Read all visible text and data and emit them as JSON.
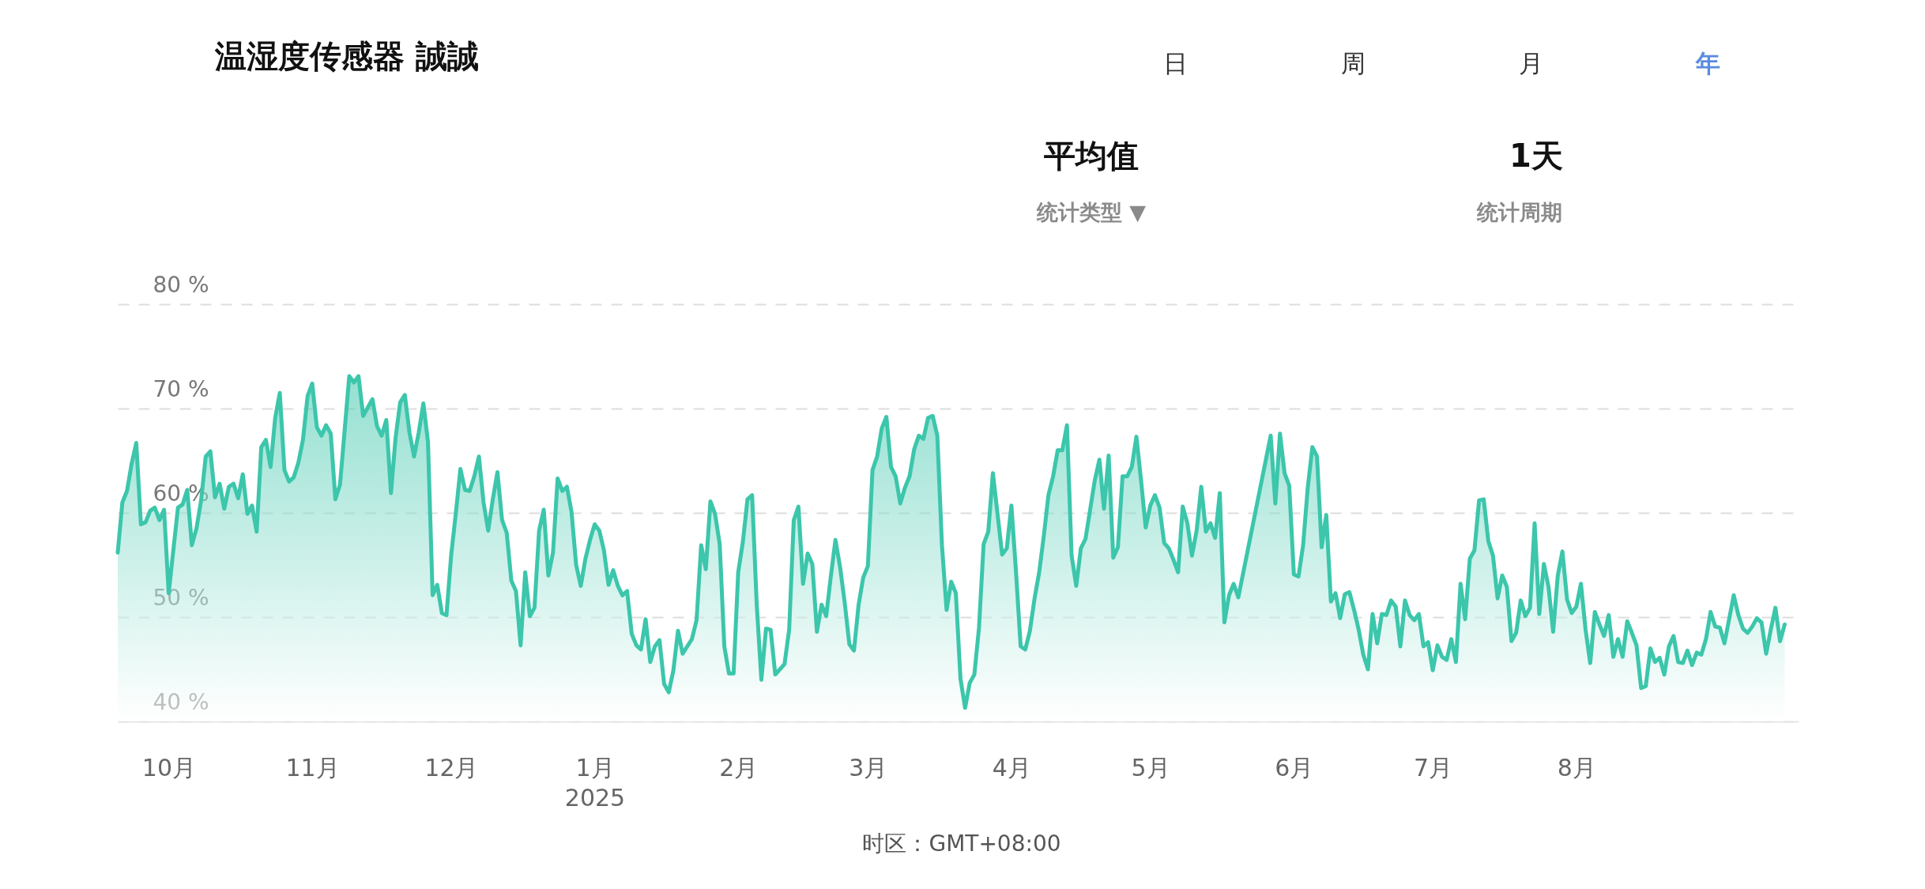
{
  "chart_data": {
    "type": "area",
    "title": "温湿度传感器 誠誠",
    "annotations": [
      "日",
      "周",
      "月",
      "年",
      "平均值",
      "统计类型 ▼",
      "1天",
      "统计周期",
      "时区：GMT+08:00"
    ],
    "x": [
      "2024-09-20",
      "2024-09-21",
      "2024-09-22",
      "2024-09-23",
      "2024-09-24",
      "2024-09-25",
      "2024-09-26",
      "2024-09-27",
      "2024-09-28",
      "2024-09-29",
      "2024-09-30",
      "2024-10-01",
      "2024-10-03",
      "2024-10-04",
      "2024-10-05",
      "2024-10-06",
      "2024-10-07",
      "2024-10-08",
      "2024-10-09",
      "2024-10-10",
      "2024-10-11",
      "2024-10-12",
      "2024-10-13",
      "2024-10-14",
      "2024-10-15",
      "2024-10-16",
      "2024-10-17",
      "2024-10-18",
      "2024-10-19",
      "2024-10-20",
      "2024-10-21",
      "2024-10-22",
      "2024-10-23",
      "2024-10-24",
      "2024-10-25",
      "2024-10-26",
      "2024-10-27",
      "2024-10-28",
      "2024-10-29",
      "2024-10-30",
      "2024-10-31",
      "2024-11-01",
      "2024-11-02",
      "2024-11-03",
      "2024-11-04",
      "2024-11-05",
      "2024-11-06",
      "2024-11-07",
      "2024-11-08",
      "2024-11-09",
      "2024-11-10",
      "2024-11-11",
      "2024-11-12",
      "2024-11-13",
      "2024-11-14",
      "2024-11-15",
      "2024-11-16",
      "2024-11-17",
      "2024-11-18",
      "2024-11-19",
      "2024-11-20",
      "2024-11-21",
      "2024-11-22",
      "2024-11-23",
      "2024-11-24",
      "2024-11-25",
      "2024-11-26",
      "2024-11-27",
      "2024-11-28",
      "2024-11-29",
      "2024-11-30",
      "2024-12-01",
      "2024-12-02",
      "2024-12-03",
      "2024-12-04",
      "2024-12-05",
      "2024-12-06",
      "2024-12-07",
      "2024-12-08",
      "2024-12-09",
      "2024-12-10",
      "2024-12-11",
      "2024-12-12",
      "2024-12-13",
      "2024-12-14",
      "2024-12-15",
      "2024-12-16",
      "2024-12-17",
      "2024-12-18",
      "2024-12-19",
      "2024-12-20",
      "2024-12-21",
      "2024-12-22",
      "2024-12-23",
      "2024-12-24",
      "2024-12-25",
      "2024-12-26",
      "2024-12-27",
      "2024-12-28",
      "2024-12-29",
      "2024-12-30",
      "2024-12-31",
      "2025-01-01",
      "2025-01-02",
      "2025-01-03",
      "2025-01-04",
      "2025-01-05",
      "2025-01-06",
      "2025-01-07",
      "2025-01-08",
      "2025-01-09",
      "2025-01-10",
      "2025-01-11",
      "2025-01-12",
      "2025-01-13",
      "2025-01-14",
      "2025-01-15",
      "2025-01-16",
      "2025-01-17",
      "2025-01-18",
      "2025-01-19",
      "2025-01-20",
      "2025-01-22",
      "2025-01-23",
      "2025-01-24",
      "2025-01-25",
      "2025-01-26",
      "2025-01-27",
      "2025-01-28",
      "2025-01-29",
      "2025-01-30",
      "2025-01-31",
      "2025-02-01",
      "2025-02-02",
      "2025-02-03",
      "2025-02-04",
      "2025-02-05",
      "2025-02-06",
      "2025-02-07",
      "2025-02-08",
      "2025-02-09",
      "2025-02-10",
      "2025-02-11",
      "2025-02-12",
      "2025-02-13",
      "2025-02-14",
      "2025-02-15",
      "2025-02-16",
      "2025-02-17",
      "2025-02-18",
      "2025-02-19",
      "2025-02-20",
      "2025-02-21",
      "2025-02-22",
      "2025-02-23",
      "2025-02-24",
      "2025-02-25",
      "2025-02-26",
      "2025-02-27",
      "2025-02-28",
      "2025-03-01",
      "2025-03-02",
      "2025-03-03",
      "2025-03-04",
      "2025-03-05",
      "2025-03-06",
      "2025-03-07",
      "2025-03-08",
      "2025-03-09",
      "2025-03-10",
      "2025-03-11",
      "2025-03-12",
      "2025-03-13",
      "2025-03-14",
      "2025-03-15",
      "2025-03-16",
      "2025-03-17",
      "2025-03-18",
      "2025-03-19",
      "2025-03-20",
      "2025-03-21",
      "2025-03-22",
      "2025-03-23",
      "2025-03-24",
      "2025-03-25",
      "2025-03-26",
      "2025-03-27",
      "2025-03-28",
      "2025-03-29",
      "2025-03-30",
      "2025-03-31",
      "2025-04-01",
      "2025-04-02",
      "2025-04-03",
      "2025-04-04",
      "2025-04-05",
      "2025-04-06",
      "2025-04-07",
      "2025-04-08",
      "2025-04-09",
      "2025-04-10",
      "2025-04-11",
      "2025-04-12",
      "2025-04-13",
      "2025-04-14",
      "2025-04-15",
      "2025-04-16",
      "2025-04-17",
      "2025-04-18",
      "2025-04-19",
      "2025-04-20",
      "2025-04-21",
      "2025-04-22",
      "2025-04-23",
      "2025-04-24",
      "2025-04-25",
      "2025-04-26",
      "2025-04-27",
      "2025-04-28",
      "2025-04-29",
      "2025-04-30",
      "2025-05-01",
      "2025-05-02",
      "2025-05-03",
      "2025-05-04",
      "2025-05-05",
      "2025-05-06",
      "2025-05-07",
      "2025-05-08",
      "2025-05-09",
      "2025-05-10",
      "2025-05-11",
      "2025-05-12",
      "2025-05-13",
      "2025-05-14",
      "2025-05-15",
      "2025-05-16",
      "2025-05-17",
      "2025-05-18",
      "2025-05-19",
      "2025-05-20",
      "2025-05-27",
      "2025-05-28",
      "2025-05-29",
      "2025-05-30",
      "2025-05-31",
      "2025-06-01",
      "2025-06-02",
      "2025-06-03",
      "2025-06-04",
      "2025-06-05",
      "2025-06-06",
      "2025-06-07",
      "2025-06-08",
      "2025-06-09",
      "2025-06-10",
      "2025-06-11",
      "2025-06-12",
      "2025-06-13",
      "2025-06-14",
      "2025-06-15",
      "2025-06-16",
      "2025-06-17",
      "2025-06-18",
      "2025-06-19",
      "2025-06-20",
      "2025-06-21",
      "2025-06-22",
      "2025-06-23",
      "2025-06-24",
      "2025-06-25",
      "2025-06-26",
      "2025-06-27",
      "2025-06-28",
      "2025-06-29",
      "2025-06-30",
      "2025-07-01",
      "2025-07-02",
      "2025-07-03",
      "2025-07-04",
      "2025-07-05",
      "2025-07-06",
      "2025-07-07",
      "2025-07-08",
      "2025-07-09",
      "2025-07-10",
      "2025-07-11",
      "2025-07-12",
      "2025-07-13",
      "2025-07-14",
      "2025-07-15",
      "2025-07-16",
      "2025-07-17",
      "2025-07-18",
      "2025-07-19",
      "2025-07-20",
      "2025-07-21",
      "2025-07-22",
      "2025-07-23",
      "2025-07-24",
      "2025-07-25",
      "2025-07-26",
      "2025-07-27",
      "2025-07-28",
      "2025-07-29",
      "2025-07-30",
      "2025-07-31",
      "2025-08-01",
      "2025-08-02",
      "2025-08-03",
      "2025-08-04",
      "2025-08-05",
      "2025-08-06",
      "2025-08-07",
      "2025-08-08",
      "2025-08-09",
      "2025-08-10",
      "2025-08-11",
      "2025-08-12",
      "2025-08-13",
      "2025-08-14",
      "2025-08-15",
      "2025-08-16",
      "2025-08-17",
      "2025-08-18",
      "2025-08-19",
      "2025-08-20",
      "2025-08-21",
      "2025-08-22",
      "2025-08-23",
      "2025-08-24",
      "2025-08-25",
      "2025-08-26",
      "2025-08-27",
      "2025-08-28",
      "2025-08-29",
      "2025-08-30",
      "2025-08-31",
      "2025-09-01",
      "2025-09-02",
      "2025-09-03",
      "2025-09-04",
      "2025-09-05",
      "2025-09-06",
      "2025-09-07",
      "2025-09-08",
      "2025-09-09",
      "2025-09-10",
      "2025-09-11",
      "2025-09-12",
      "2025-09-13",
      "2025-09-14",
      "2025-09-15"
    ],
    "series": [
      {
        "color": "#3cc6ab",
        "values": [
          56.2,
          61.0,
          62.1,
          64.7,
          66.7,
          58.9,
          59.1,
          60.2,
          60.5,
          59.3,
          60.3,
          52.3,
          60.5,
          60.8,
          62.2,
          56.9,
          58.5,
          61.2,
          65.4,
          65.9,
          61.5,
          62.8,
          60.4,
          62.5,
          62.8,
          61.4,
          63.7,
          59.9,
          60.7,
          58.2,
          66.3,
          67.0,
          64.4,
          69.1,
          71.5,
          64.1,
          63.0,
          63.4,
          64.8,
          67.0,
          71.2,
          72.4,
          68.2,
          67.4,
          68.4,
          67.6,
          61.3,
          62.7,
          67.9,
          73.1,
          72.5,
          73.1,
          69.3,
          70.1,
          70.9,
          68.3,
          67.4,
          68.9,
          61.9,
          67.2,
          70.6,
          71.3,
          67.7,
          65.4,
          67.7,
          70.5,
          66.8,
          52.1,
          53.1,
          50.4,
          50.2,
          55.9,
          59.9,
          64.2,
          62.2,
          62.1,
          63.5,
          65.4,
          61.0,
          58.3,
          61.3,
          63.9,
          59.3,
          58.1,
          53.5,
          52.5,
          47.3,
          54.3,
          50.1,
          50.9,
          58.3,
          60.3,
          54.0,
          56.2,
          63.3,
          62.1,
          62.5,
          60.1,
          55.0,
          53.0,
          55.6,
          57.4,
          58.9,
          58.3,
          56.4,
          53.1,
          54.5,
          53.0,
          52.1,
          52.5,
          48.4,
          47.3,
          46.9,
          49.8,
          45.7,
          47.2,
          47.8,
          43.6,
          42.8,
          44.9,
          48.7,
          46.5,
          47.9,
          49.7,
          56.9,
          54.6,
          61.1,
          59.9,
          57.0,
          47.2,
          44.6,
          44.6,
          54.3,
          57.2,
          61.3,
          61.7,
          51.2,
          44.0,
          48.9,
          48.8,
          44.5,
          45.0,
          45.5,
          48.8,
          59.3,
          60.6,
          53.2,
          56.1,
          55.1,
          48.6,
          51.2,
          50.1,
          53.9,
          57.4,
          54.8,
          51.4,
          47.4,
          46.8,
          51.2,
          53.8,
          54.9,
          64.1,
          65.4,
          68.1,
          69.2,
          64.4,
          63.5,
          60.9,
          62.4,
          63.5,
          66.1,
          67.4,
          67.1,
          69.1,
          69.3,
          67.4,
          56.9,
          50.7,
          53.4,
          52.3,
          44.1,
          41.3,
          43.7,
          44.5,
          49.0,
          57.0,
          58.2,
          63.8,
          59.9,
          56.0,
          56.6,
          60.7,
          54.3,
          47.2,
          46.9,
          48.7,
          51.8,
          54.3,
          57.8,
          61.7,
          63.5,
          66.0,
          66.0,
          68.4,
          55.9,
          53.0,
          56.6,
          57.5,
          60.3,
          63.1,
          65.1,
          60.4,
          65.5,
          55.7,
          56.7,
          63.5,
          63.5,
          64.4,
          67.3,
          63.1,
          58.6,
          60.7,
          61.7,
          60.5,
          57.1,
          56.6,
          55.5,
          54.3,
          60.6,
          59.0,
          55.9,
          58.3,
          62.5,
          58.2,
          59.0,
          57.6,
          61.9,
          49.5,
          52.1,
          53.2,
          51.9,
          67.4,
          60.9,
          67.6,
          63.8,
          62.6,
          54.1,
          53.9,
          56.9,
          62.4,
          66.3,
          65.4,
          56.7,
          59.8,
          51.5,
          52.3,
          49.9,
          52.2,
          52.4,
          50.7,
          48.8,
          46.4,
          45.0,
          50.3,
          47.5,
          50.3,
          50.2,
          51.6,
          51.0,
          47.2,
          51.6,
          50.2,
          49.7,
          50.3,
          47.2,
          47.6,
          44.9,
          47.3,
          46.2,
          45.9,
          47.9,
          45.7,
          53.2,
          49.8,
          55.6,
          56.4,
          61.2,
          61.3,
          57.3,
          55.9,
          51.8,
          54.0,
          52.9,
          47.7,
          48.5,
          51.6,
          50.1,
          50.9,
          59.0,
          50.3,
          55.1,
          52.9,
          48.6,
          54.0,
          56.3,
          51.7,
          50.4,
          51.0,
          53.2,
          48.8,
          45.6,
          50.5,
          49.3,
          48.2,
          50.2,
          46.2,
          47.9,
          46.2,
          49.6,
          48.5,
          47.3,
          43.2,
          43.4,
          47.0,
          45.7,
          46.1,
          44.5,
          47.2,
          48.2,
          45.7,
          45.6,
          46.8,
          45.4,
          46.6,
          46.4,
          47.9,
          50.5,
          49.1,
          49.0,
          47.5,
          49.8,
          52.1,
          50.2,
          48.9,
          48.5,
          49.1,
          49.9,
          49.5,
          46.5,
          48.8,
          50.9,
          47.7,
          49.3
        ]
      }
    ],
    "xlim": [
      "2024-09-20",
      "2025-09-18"
    ],
    "xticks": [
      {
        "value": "2024-10-01",
        "label": "10月"
      },
      {
        "value": "2024-11-01",
        "label": "11月"
      },
      {
        "value": "2024-12-01",
        "label": "12月"
      },
      {
        "value": "2025-01-01",
        "label": "1月\n2025"
      },
      {
        "value": "2025-02-01",
        "label": "2月"
      },
      {
        "value": "2025-03-01",
        "label": "3月"
      },
      {
        "value": "2025-04-01",
        "label": "4月"
      },
      {
        "value": "2025-05-01",
        "label": "5月"
      },
      {
        "value": "2025-06-01",
        "label": "6月"
      },
      {
        "value": "2025-07-01",
        "label": "7月"
      },
      {
        "value": "2025-08-01",
        "label": "8月"
      }
    ],
    "ylim": [
      40,
      80
    ],
    "yticks": [
      {
        "value": 40,
        "label": "40 %"
      },
      {
        "value": 50,
        "label": "50 %"
      },
      {
        "value": 60,
        "label": "60 %"
      },
      {
        "value": 70,
        "label": "70 %"
      },
      {
        "value": 80,
        "label": "80 %"
      }
    ],
    "grid": "y"
  }
}
